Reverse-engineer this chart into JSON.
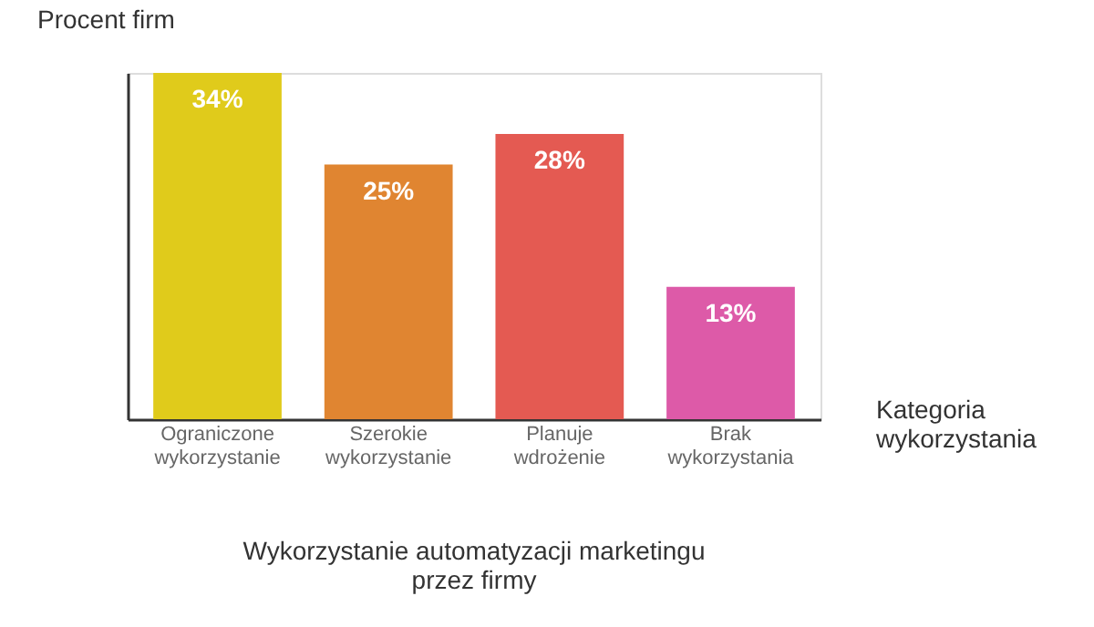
{
  "chart_data": {
    "type": "bar",
    "title": "Wykorzystanie automatyzacji marketingu przez firmy",
    "xlabel": "Kategoria wykorzystania",
    "ylabel": "Procent firm",
    "categories": [
      "Ograniczone wykorzystanie",
      "Szerokie wykorzystanie",
      "Planuje wdrożenie",
      "Brak wykorzystania"
    ],
    "values": [
      34,
      25,
      28,
      13
    ],
    "colors": [
      "#e0cb1b",
      "#e08531",
      "#e45a52",
      "#dd5aa8"
    ],
    "value_labels": [
      "34%",
      "25%",
      "28%",
      "13%"
    ],
    "grid": false
  }
}
